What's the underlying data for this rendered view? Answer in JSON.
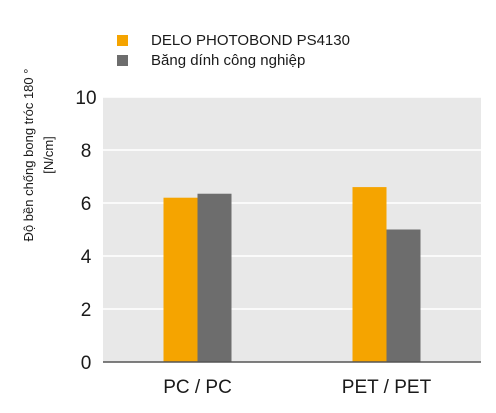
{
  "chart_data": {
    "type": "bar",
    "title": "",
    "ylabel_lines": [
      "Độ bền chống bong tróc 180 °",
      "[N/cm]"
    ],
    "xlabel": "",
    "categories": [
      "PC / PC",
      "PET / PET"
    ],
    "series": [
      {
        "name": "DELO PHOTOBOND PS4130",
        "values": [
          6.2,
          6.6
        ],
        "color": "#f5a400"
      },
      {
        "name": "Băng dính công nghiệp",
        "values": [
          6.35,
          5.0
        ],
        "color": "#6d6d6d"
      }
    ],
    "ylim": [
      0,
      10
    ],
    "yticks": [
      "0",
      "2",
      "4",
      "6",
      "8",
      "10"
    ],
    "grid": true,
    "legend_position": "top",
    "plot_background": "#e8e8e8",
    "grid_color": "#ffffff"
  }
}
